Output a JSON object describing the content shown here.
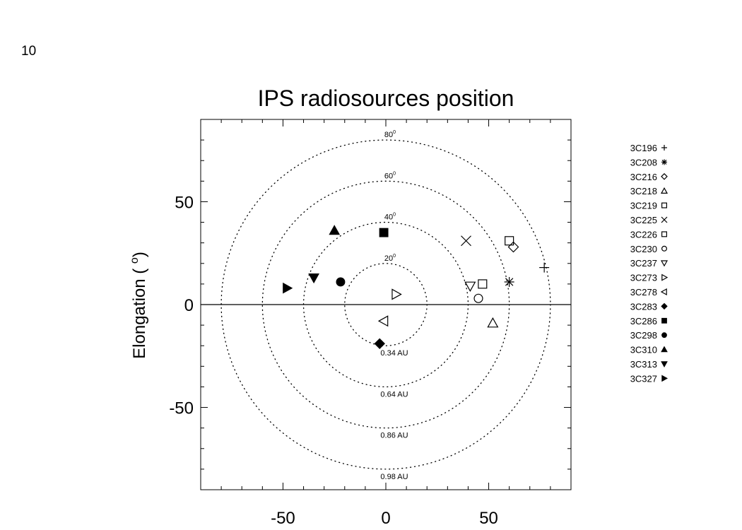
{
  "page_number": "10",
  "chart_data": {
    "type": "scatter",
    "title": "IPS radiosources position",
    "ylabel": "Elongation ( ",
    "ylabel_sup": "o",
    "ylabel_end": ")",
    "xlim": [
      -90,
      90
    ],
    "ylim": [
      -90,
      90
    ],
    "x_ticks": [
      -50,
      0,
      50
    ],
    "y_ticks": [
      -50,
      0,
      50
    ],
    "grid": false,
    "legend_position": "right",
    "circles": [
      {
        "radius": 20,
        "top_label": "20",
        "bottom_label": "0.34 AU"
      },
      {
        "radius": 40,
        "top_label": "40",
        "bottom_label": "0.64 AU"
      },
      {
        "radius": 60,
        "top_label": "60",
        "bottom_label": "0.86 AU"
      },
      {
        "radius": 80,
        "top_label": "80",
        "bottom_label": "0.98 AU"
      }
    ],
    "points": [
      {
        "name": "3C196",
        "symbol": "plus",
        "x": 77,
        "y": 18
      },
      {
        "name": "3C208",
        "symbol": "asterisk",
        "x": 60,
        "y": 11
      },
      {
        "name": "3C216",
        "symbol": "diamond-open",
        "x": 62,
        "y": 28
      },
      {
        "name": "3C218",
        "symbol": "triangle-open",
        "x": 52,
        "y": -9
      },
      {
        "name": "3C219",
        "symbol": "square-open",
        "x": 60,
        "y": 31
      },
      {
        "name": "3C225",
        "symbol": "cross",
        "x": 39,
        "y": 31
      },
      {
        "name": "3C226",
        "symbol": "square-open",
        "x": 47,
        "y": 10
      },
      {
        "name": "3C230",
        "symbol": "circle-open",
        "x": 45,
        "y": 3
      },
      {
        "name": "3C237",
        "symbol": "triangle-down-open",
        "x": 41,
        "y": 9
      },
      {
        "name": "3C273",
        "symbol": "triangle-right-open",
        "x": 5,
        "y": 5
      },
      {
        "name": "3C278",
        "symbol": "triangle-left-open",
        "x": -1,
        "y": -8
      },
      {
        "name": "3C283",
        "symbol": "diamond-filled",
        "x": -3,
        "y": -19
      },
      {
        "name": "3C286",
        "symbol": "square-filled",
        "x": -1,
        "y": 35
      },
      {
        "name": "3C298",
        "symbol": "circle-filled",
        "x": -22,
        "y": 11
      },
      {
        "name": "3C310",
        "symbol": "triangle-filled",
        "x": -25,
        "y": 36
      },
      {
        "name": "3C313",
        "symbol": "triangle-down-filled",
        "x": -35,
        "y": 13
      },
      {
        "name": "3C327",
        "symbol": "triangle-right-filled",
        "x": -48,
        "y": 8
      }
    ]
  }
}
